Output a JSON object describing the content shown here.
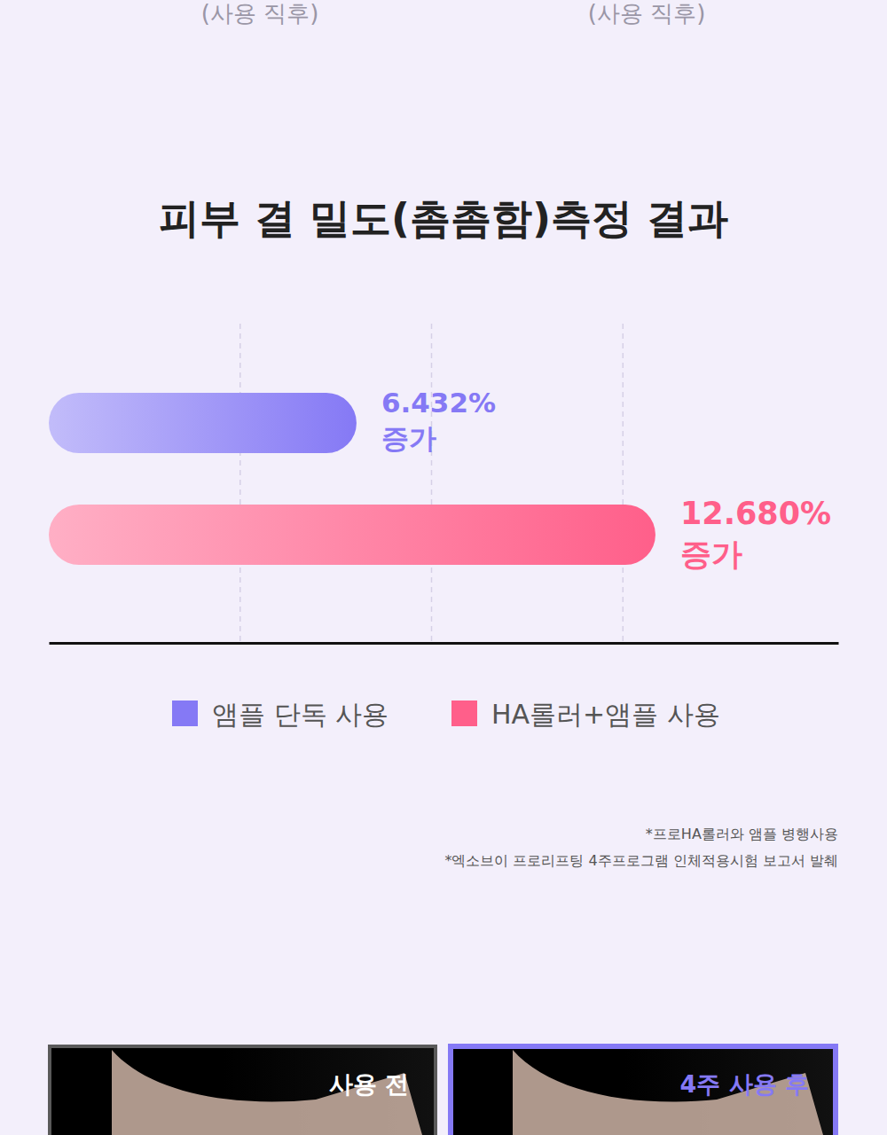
{
  "chart_data": {
    "type": "bar",
    "orientation": "horizontal",
    "title": "피부 결 밀도(촘촘함)측정 결과",
    "categories": [
      "앰플 단독 사용",
      "HA롤러+앰플 사용"
    ],
    "values": [
      6.432,
      12.68
    ],
    "value_labels": [
      "6.432% 증가",
      "12.680% 증가"
    ],
    "colors": [
      "#8579f5",
      "#ff5f8a"
    ],
    "xlim": [
      0,
      16.5
    ],
    "xticks": [
      4,
      8,
      12
    ],
    "grid": true,
    "tick_labels": false,
    "data_labels": true,
    "legend": "bottom"
  },
  "header_captions": [
    "(사용 직후)",
    "(사용 직후)"
  ],
  "footnotes": [
    "*프로HA롤러와 앰플 병행사용",
    "*엑소브이 프로리프팅 4주프로그램 인체적용시험 보고서 발췌"
  ],
  "photo_labels": [
    "사용 전",
    "4주 사용 후"
  ]
}
